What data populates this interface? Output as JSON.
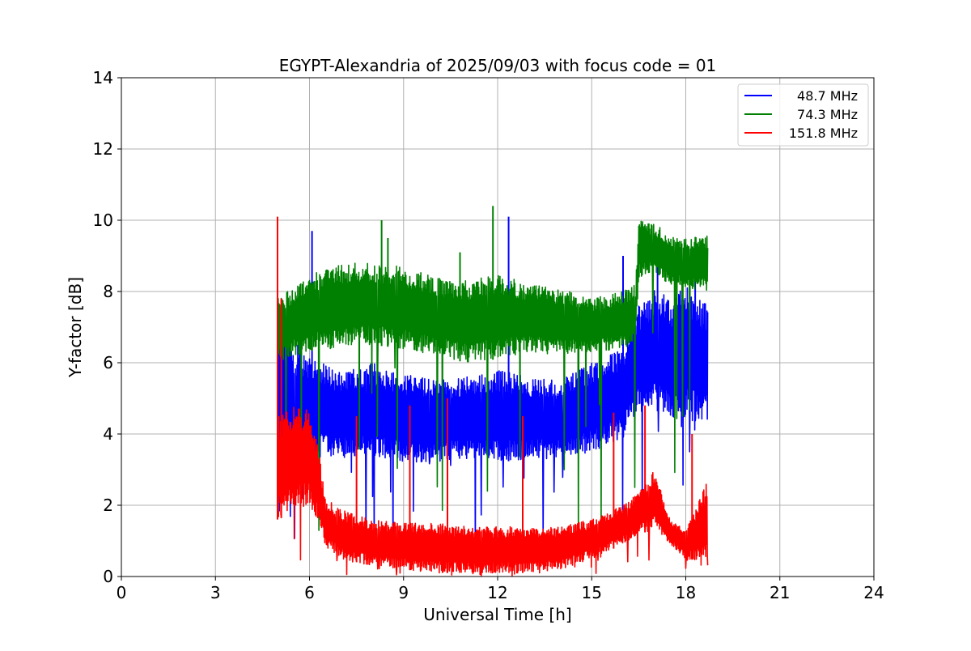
{
  "chart_data": {
    "type": "line",
    "title": "EGYPT-Alexandria of 2025/09/03 with focus code = 01",
    "xlabel": "Universal Time [h]",
    "ylabel": "Y-factor [dB]",
    "xlim": [
      0,
      24
    ],
    "ylim": [
      0,
      14
    ],
    "xticks": [
      "0",
      "3",
      "6",
      "9",
      "12",
      "15",
      "18",
      "21",
      "24"
    ],
    "yticks": [
      "0",
      "2",
      "4",
      "6",
      "8",
      "10",
      "12",
      "14"
    ],
    "grid": true,
    "legend_position": "top-right",
    "series": [
      {
        "name": "48.7 MHz",
        "color": "#0000ff",
        "low": [
          [
            5.0,
            1.5
          ],
          [
            5.5,
            2.5
          ],
          [
            6.0,
            3.2
          ],
          [
            6.5,
            3.4
          ],
          [
            7.0,
            3.3
          ],
          [
            8.0,
            3.4
          ],
          [
            9.0,
            3.2
          ],
          [
            10.0,
            3.2
          ],
          [
            11.0,
            3.3
          ],
          [
            12.0,
            3.2
          ],
          [
            13.0,
            3.3
          ],
          [
            14.0,
            3.3
          ],
          [
            15.0,
            3.5
          ],
          [
            16.0,
            3.9
          ],
          [
            16.5,
            4.6
          ],
          [
            17.0,
            4.7
          ],
          [
            17.5,
            4.4
          ],
          [
            18.0,
            4.4
          ],
          [
            18.7,
            4.3
          ]
        ],
        "high": [
          [
            5.0,
            7.8
          ],
          [
            5.5,
            6.7
          ],
          [
            6.0,
            6.2
          ],
          [
            6.5,
            6.0
          ],
          [
            7.0,
            5.7
          ],
          [
            8.0,
            6.0
          ],
          [
            9.0,
            5.7
          ],
          [
            10.0,
            5.5
          ],
          [
            11.0,
            5.6
          ],
          [
            12.0,
            5.8
          ],
          [
            13.0,
            5.6
          ],
          [
            14.0,
            5.5
          ],
          [
            15.0,
            6.0
          ],
          [
            16.0,
            6.4
          ],
          [
            16.5,
            7.6
          ],
          [
            17.0,
            8.1
          ],
          [
            17.5,
            7.8
          ],
          [
            18.0,
            8.2
          ],
          [
            18.7,
            7.6
          ]
        ],
        "spikes": [
          [
            6.08,
            9.7
          ],
          [
            12.35,
            10.1
          ],
          [
            16.0,
            9.0
          ],
          [
            17.1,
            9.4
          ],
          [
            18.3,
            8.3
          ]
        ]
      },
      {
        "name": "74.3 MHz",
        "color": "#008000",
        "low": [
          [
            5.0,
            6.0
          ],
          [
            5.5,
            6.2
          ],
          [
            6.0,
            6.3
          ],
          [
            7.0,
            6.4
          ],
          [
            8.0,
            6.5
          ],
          [
            9.0,
            6.4
          ],
          [
            10.0,
            6.2
          ],
          [
            11.0,
            6.0
          ],
          [
            12.0,
            6.1
          ],
          [
            13.0,
            6.3
          ],
          [
            14.0,
            6.2
          ],
          [
            15.0,
            6.3
          ],
          [
            16.0,
            6.4
          ],
          [
            16.4,
            6.6
          ],
          [
            16.5,
            8.4
          ],
          [
            17.0,
            8.5
          ],
          [
            17.5,
            8.2
          ],
          [
            18.0,
            8.1
          ],
          [
            18.7,
            8.0
          ]
        ],
        "high": [
          [
            5.0,
            7.9
          ],
          [
            5.5,
            8.1
          ],
          [
            6.0,
            8.5
          ],
          [
            7.0,
            8.8
          ],
          [
            8.0,
            8.8
          ],
          [
            9.0,
            8.7
          ],
          [
            10.0,
            8.4
          ],
          [
            11.0,
            8.3
          ],
          [
            12.0,
            8.5
          ],
          [
            13.0,
            8.2
          ],
          [
            14.0,
            8.1
          ],
          [
            15.0,
            7.8
          ],
          [
            16.0,
            8.0
          ],
          [
            16.4,
            8.2
          ],
          [
            16.5,
            10.0
          ],
          [
            17.0,
            9.9
          ],
          [
            17.5,
            9.6
          ],
          [
            18.0,
            9.5
          ],
          [
            18.7,
            9.6
          ]
        ],
        "spikes": [
          [
            8.3,
            10.0
          ],
          [
            11.85,
            10.4
          ],
          [
            10.8,
            9.1
          ],
          [
            8.5,
            9.5
          ]
        ]
      },
      {
        "name": "151.8 MHz",
        "color": "#ff0000",
        "low": [
          [
            5.0,
            1.6
          ],
          [
            5.5,
            1.8
          ],
          [
            6.0,
            2.0
          ],
          [
            6.3,
            1.5
          ],
          [
            6.5,
            0.8
          ],
          [
            7.0,
            0.5
          ],
          [
            8.0,
            0.3
          ],
          [
            9.0,
            0.2
          ],
          [
            10.0,
            0.1
          ],
          [
            11.0,
            0.1
          ],
          [
            12.0,
            0.1
          ],
          [
            13.0,
            0.1
          ],
          [
            14.0,
            0.2
          ],
          [
            15.0,
            0.5
          ],
          [
            16.0,
            0.9
          ],
          [
            16.5,
            1.2
          ],
          [
            17.0,
            1.3
          ],
          [
            17.5,
            0.9
          ],
          [
            18.0,
            0.5
          ],
          [
            18.7,
            0.4
          ]
        ],
        "high": [
          [
            5.0,
            4.5
          ],
          [
            5.5,
            4.8
          ],
          [
            6.0,
            4.7
          ],
          [
            6.3,
            3.5
          ],
          [
            6.5,
            2.2
          ],
          [
            7.0,
            1.9
          ],
          [
            8.0,
            1.6
          ],
          [
            9.0,
            1.5
          ],
          [
            10.0,
            1.5
          ],
          [
            11.0,
            1.4
          ],
          [
            12.0,
            1.4
          ],
          [
            13.0,
            1.4
          ],
          [
            14.0,
            1.4
          ],
          [
            15.0,
            1.6
          ],
          [
            16.0,
            2.0
          ],
          [
            16.5,
            2.4
          ],
          [
            17.0,
            3.0
          ],
          [
            17.5,
            1.6
          ],
          [
            18.0,
            1.3
          ],
          [
            18.7,
            2.7
          ]
        ],
        "spikes": [
          [
            4.98,
            10.1
          ],
          [
            5.1,
            7.8
          ],
          [
            7.5,
            4.5
          ],
          [
            9.2,
            4.8
          ],
          [
            10.4,
            5.0
          ],
          [
            12.8,
            4.5
          ],
          [
            15.7,
            4.6
          ],
          [
            16.7,
            4.8
          ],
          [
            18.2,
            4.0
          ]
        ]
      }
    ]
  }
}
